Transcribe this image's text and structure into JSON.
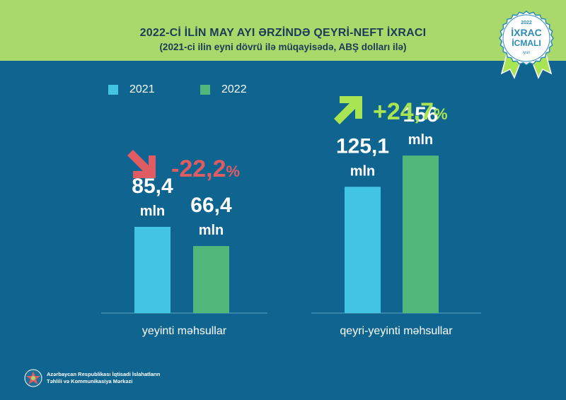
{
  "header": {
    "title": "2022-Cİ İLİN MAY AYI ƏRZİNDƏ QEYRİ-NEFT İXRACI",
    "subtitle": "(2021-ci ilin eyni dövrü ilə müqayisədə, ABŞ dolları ilə)"
  },
  "badge": {
    "year": "2022",
    "line1": "İXRAC",
    "line2": "İCMALI",
    "month": "iyun"
  },
  "footer": {
    "line1": "Azərbaycan Respublikası İqtisadi İslahatların",
    "line2": "Təhlili və Kommunikasiya Mərkəzi"
  },
  "colors": {
    "background": "#0f6590",
    "header": "#a9d96a",
    "series_2021": "#42c5e3",
    "series_2022": "#4fb87a",
    "decrease": "#e05c62",
    "increase": "#a9e553"
  },
  "chart_data": {
    "type": "bar",
    "categories": [
      "yeyinti məhsullar",
      "qeyri-yeyinti məhsullar"
    ],
    "series": [
      {
        "name": "2021",
        "values": [
          85.4,
          125.1
        ],
        "labels": [
          "85,4",
          "125,1"
        ]
      },
      {
        "name": "2022",
        "values": [
          66.4,
          156
        ],
        "labels": [
          "66,4",
          "156"
        ]
      }
    ],
    "unit": "mln",
    "changes": [
      {
        "value": "-22,2",
        "suffix": "%",
        "direction": "down"
      },
      {
        "value": "+24,7",
        "suffix": "%",
        "direction": "up"
      }
    ],
    "ylim": [
      0,
      210
    ],
    "legend": "top-left",
    "grid": false
  }
}
